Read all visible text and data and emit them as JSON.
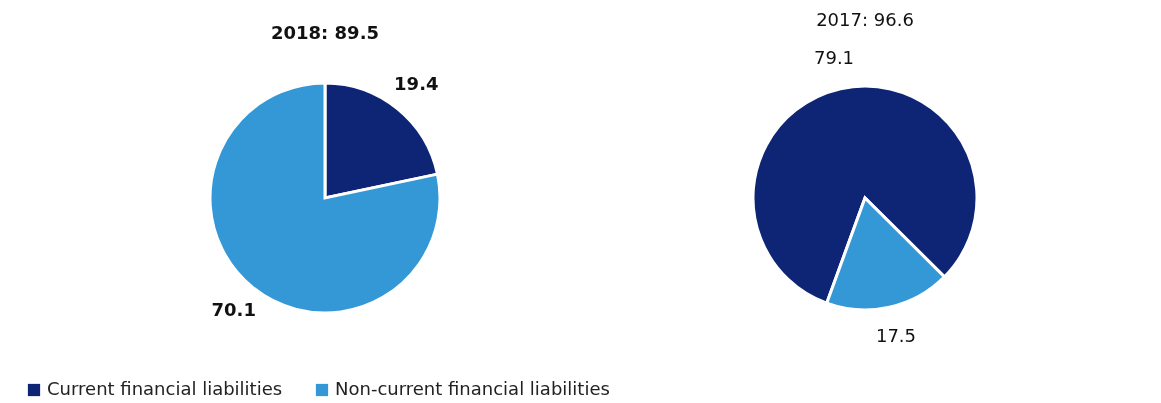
{
  "chart_data": [
    {
      "type": "pie",
      "title": "2018: 89.5",
      "categories": [
        "Current financial liabilities",
        "Non-current financial liabilities"
      ],
      "values": [
        19.4,
        70.1
      ],
      "colors": [
        "#0e2575",
        "#3598d6"
      ],
      "data_labels": true,
      "legend": "bottom left"
    },
    {
      "type": "pie",
      "title": "2017: 96.6",
      "categories": [
        null,
        null
      ],
      "values": [
        79.1,
        17.5
      ],
      "colors": [
        "#0e2575",
        "#3598d6"
      ],
      "data_labels": true
    }
  ]
}
